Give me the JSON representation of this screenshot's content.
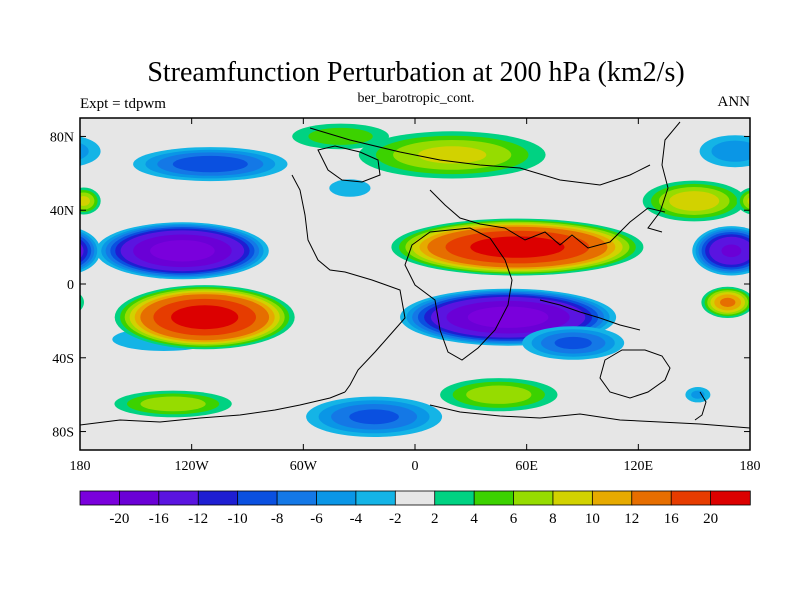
{
  "chart_data": {
    "type": "heatmap",
    "title": "Streamfunction Perturbation at 200 hPa (km2/s)",
    "subtitle": "ber_barotropic_cont.",
    "left_label": "Expt = tdpwm",
    "right_label": "ANN",
    "projection": "cylindrical equidistant",
    "xlim": [
      -180,
      180
    ],
    "ylim": [
      -90,
      90
    ],
    "x_ticks": [
      {
        "value": -180,
        "label": "180"
      },
      {
        "value": -120,
        "label": "120W"
      },
      {
        "value": -60,
        "label": "60W"
      },
      {
        "value": 0,
        "label": "0"
      },
      {
        "value": 60,
        "label": "60E"
      },
      {
        "value": 120,
        "label": "120E"
      },
      {
        "value": 180,
        "label": "180"
      }
    ],
    "y_ticks": [
      {
        "value": 80,
        "label": "80N"
      },
      {
        "value": 40,
        "label": "40N"
      },
      {
        "value": 0,
        "label": "0"
      },
      {
        "value": -40,
        "label": "40S"
      },
      {
        "value": -80,
        "label": "80S"
      }
    ],
    "colorbar": {
      "levels": [
        "-20",
        "-16",
        "-12",
        "-10",
        "-8",
        "-6",
        "-4",
        "-2",
        "2",
        "4",
        "6",
        "8",
        "10",
        "12",
        "16",
        "20"
      ],
      "colors": [
        "#7a00dc",
        "#6a00d6",
        "#5a14e0",
        "#1e1ed2",
        "#0a50e0",
        "#1478e6",
        "#0a96e6",
        "#14b4e6",
        "#e6e6e6",
        "#00d282",
        "#3cd200",
        "#96dc00",
        "#d2d200",
        "#e6aa00",
        "#e66e00",
        "#e63c00",
        "#dc0000"
      ]
    },
    "features": [
      {
        "lon": -125,
        "lat": 18,
        "value": -22,
        "rx": 48,
        "ry": 16
      },
      {
        "lon": 170,
        "lat": 18,
        "value": -16,
        "rx": 22,
        "ry": 14
      },
      {
        "lon": -110,
        "lat": 65,
        "value": -9,
        "rx": 45,
        "ry": 10
      },
      {
        "lon": 172,
        "lat": 72,
        "value": -5,
        "rx": 22,
        "ry": 10
      },
      {
        "lon": -35,
        "lat": 52,
        "value": -3,
        "rx": 14,
        "ry": 6
      },
      {
        "lon": -22,
        "lat": -72,
        "value": -8,
        "rx": 40,
        "ry": 12
      },
      {
        "lon": -135,
        "lat": -30,
        "value": -3,
        "rx": 35,
        "ry": 8
      },
      {
        "lon": 152,
        "lat": -60,
        "value": -4,
        "rx": 8,
        "ry": 5
      },
      {
        "lon": 50,
        "lat": -18,
        "value": -22,
        "rx": 60,
        "ry": 16
      },
      {
        "lon": 85,
        "lat": -32,
        "value": -8,
        "rx": 30,
        "ry": 10
      },
      {
        "lon": -113,
        "lat": -18,
        "value": 22,
        "rx": 50,
        "ry": 18
      },
      {
        "lon": 55,
        "lat": 20,
        "value": 22,
        "rx": 70,
        "ry": 16
      },
      {
        "lon": 20,
        "lat": 70,
        "value": 8,
        "rx": 55,
        "ry": 14
      },
      {
        "lon": 168,
        "lat": -10,
        "value": 12,
        "rx": 15,
        "ry": 9
      },
      {
        "lon": 150,
        "lat": 45,
        "value": 9,
        "rx": 30,
        "ry": 12
      },
      {
        "lon": -178,
        "lat": 45,
        "value": 8,
        "rx": 10,
        "ry": 8
      },
      {
        "lon": -130,
        "lat": -65,
        "value": 7,
        "rx": 35,
        "ry": 8
      },
      {
        "lon": 45,
        "lat": -60,
        "value": 7,
        "rx": 35,
        "ry": 10
      },
      {
        "lon": -40,
        "lat": 80,
        "value": 5,
        "rx": 30,
        "ry": 8
      }
    ]
  }
}
